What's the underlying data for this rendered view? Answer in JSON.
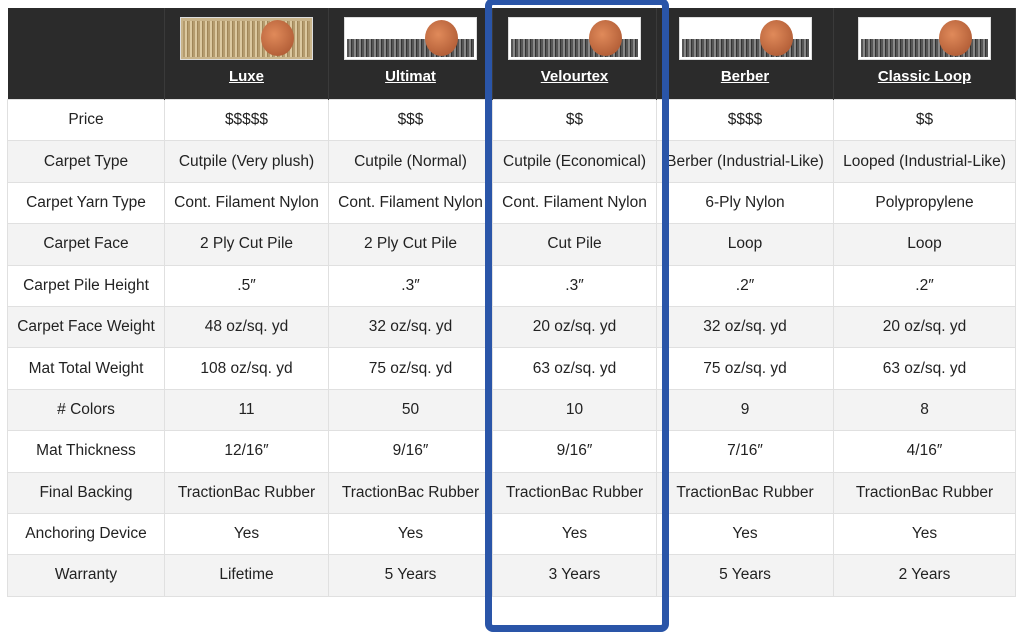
{
  "products": [
    {
      "name": "Luxe",
      "image": "carpet-sample-with-penny"
    },
    {
      "name": "Ultimat",
      "image": "carpet-sample-with-penny"
    },
    {
      "name": "Velourtex",
      "image": "carpet-sample-with-penny"
    },
    {
      "name": "Berber",
      "image": "carpet-sample-with-penny"
    },
    {
      "name": "Classic Loop",
      "image": "carpet-sample-with-penny"
    }
  ],
  "highlighted": "Velourtex",
  "highlight_color": "#2a55a8",
  "rows": [
    {
      "label": "Price",
      "values": [
        "$$$$$",
        "$$$",
        "$$",
        "$$$$",
        "$$"
      ]
    },
    {
      "label": "Carpet Type",
      "values": [
        "Cutpile (Very plush)",
        "Cutpile (Normal)",
        "Cutpile (Economical)",
        "Berber (Industrial-Like)",
        "Looped (Industrial-Like)"
      ]
    },
    {
      "label": "Carpet Yarn Type",
      "values": [
        "Cont. Filament Nylon",
        "Cont. Filament Nylon",
        "Cont. Filament Nylon",
        "6-Ply Nylon",
        "Polypropylene"
      ]
    },
    {
      "label": "Carpet Face",
      "values": [
        "2 Ply Cut Pile",
        "2 Ply Cut Pile",
        "Cut Pile",
        "Loop",
        "Loop"
      ]
    },
    {
      "label": "Carpet Pile Height",
      "values": [
        ".5″",
        ".3″",
        ".3″",
        ".2″",
        ".2″"
      ]
    },
    {
      "label": "Carpet Face Weight",
      "values": [
        "48 oz/sq. yd",
        "32 oz/sq. yd",
        "20 oz/sq. yd",
        "32 oz/sq. yd",
        "20 oz/sq. yd"
      ]
    },
    {
      "label": "Mat Total Weight",
      "values": [
        "108 oz/sq. yd",
        "75 oz/sq. yd",
        "63 oz/sq. yd",
        "75 oz/sq. yd",
        "63 oz/sq. yd"
      ]
    },
    {
      "label": "# Colors",
      "values": [
        "11",
        "50",
        "10",
        "9",
        "8"
      ]
    },
    {
      "label": "Mat Thickness",
      "values": [
        "12/16″",
        "9/16″",
        "9/16″",
        "7/16″",
        "4/16″"
      ]
    },
    {
      "label": "Final Backing",
      "values": [
        "TractionBac Rubber",
        "TractionBac Rubber",
        "TractionBac Rubber",
        "TractionBac Rubber",
        "TractionBac Rubber"
      ]
    },
    {
      "label": "Anchoring Device",
      "values": [
        "Yes",
        "Yes",
        "Yes",
        "Yes",
        "Yes"
      ]
    },
    {
      "label": "Warranty",
      "values": [
        "Lifetime",
        "5 Years",
        "3 Years",
        "5 Years",
        "2 Years"
      ]
    }
  ]
}
